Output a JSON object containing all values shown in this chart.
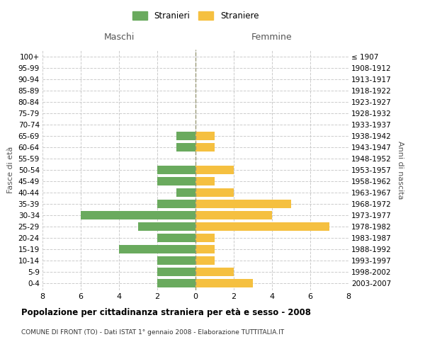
{
  "age_groups": [
    "0-4",
    "5-9",
    "10-14",
    "15-19",
    "20-24",
    "25-29",
    "30-34",
    "35-39",
    "40-44",
    "45-49",
    "50-54",
    "55-59",
    "60-64",
    "65-69",
    "70-74",
    "75-79",
    "80-84",
    "85-89",
    "90-94",
    "95-99",
    "100+"
  ],
  "birth_years": [
    "2003-2007",
    "1998-2002",
    "1993-1997",
    "1988-1992",
    "1983-1987",
    "1978-1982",
    "1973-1977",
    "1968-1972",
    "1963-1967",
    "1958-1962",
    "1953-1957",
    "1948-1952",
    "1943-1947",
    "1938-1942",
    "1933-1937",
    "1928-1932",
    "1923-1927",
    "1918-1922",
    "1913-1917",
    "1908-1912",
    "≤ 1907"
  ],
  "males": [
    2,
    2,
    2,
    4,
    2,
    3,
    6,
    2,
    1,
    2,
    2,
    0,
    1,
    1,
    0,
    0,
    0,
    0,
    0,
    0,
    0
  ],
  "females": [
    3,
    2,
    1,
    1,
    1,
    7,
    4,
    5,
    2,
    1,
    2,
    0,
    1,
    1,
    0,
    0,
    0,
    0,
    0,
    0,
    0
  ],
  "male_color": "#6aaa5e",
  "female_color": "#f5c040",
  "title": "Popolazione per cittadinanza straniera per età e sesso - 2008",
  "subtitle": "COMUNE DI FRONT (TO) - Dati ISTAT 1° gennaio 2008 - Elaborazione TUTTITALIA.IT",
  "xlabel_left": "Maschi",
  "xlabel_right": "Femmine",
  "ylabel_left": "Fasce di età",
  "ylabel_right": "Anni di nascita",
  "legend_male": "Stranieri",
  "legend_female": "Straniere",
  "xlim": 8,
  "background_color": "#ffffff",
  "grid_color": "#cccccc",
  "bar_height": 0.75
}
